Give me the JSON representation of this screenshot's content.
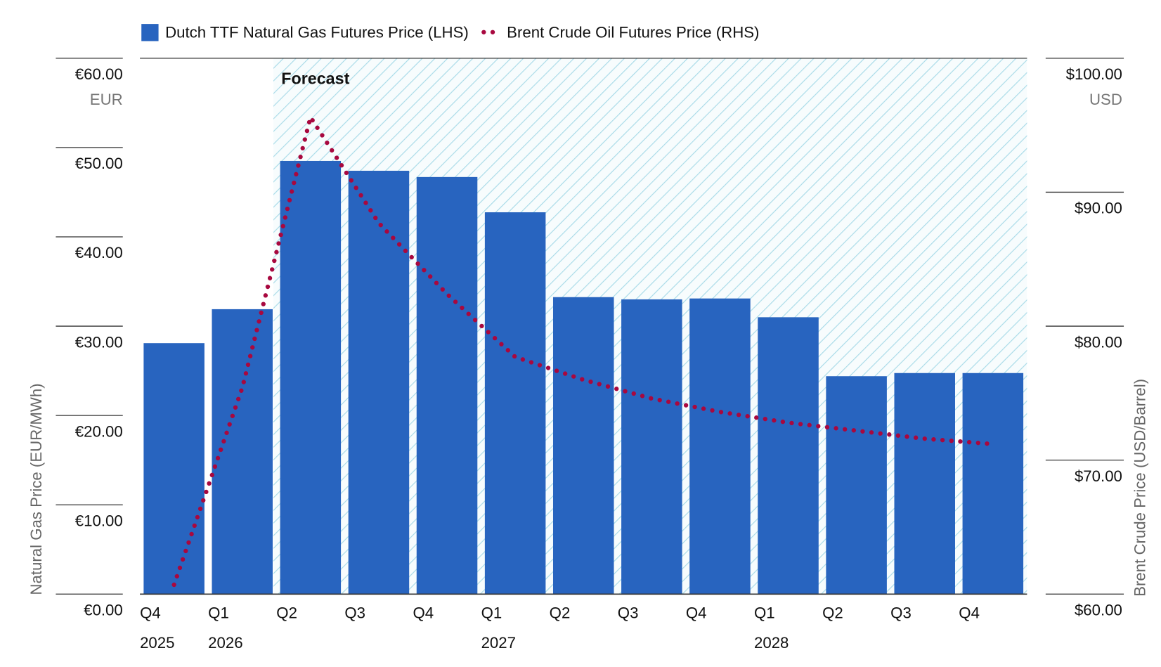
{
  "chart_data": {
    "type": "bar-line",
    "categories": [
      "Q4",
      "Q1",
      "Q2",
      "Q3",
      "Q4",
      "Q1",
      "Q2",
      "Q3",
      "Q4",
      "Q1",
      "Q2",
      "Q3",
      "Q4"
    ],
    "years": [
      "2025",
      "2026",
      null,
      null,
      null,
      "2027",
      null,
      null,
      null,
      "2028",
      null,
      null,
      null
    ],
    "annotation": "Forecast",
    "series": [
      {
        "name": "Dutch TTF Natural Gas Futures Price (LHS)",
        "color": "#2864bf",
        "type": "bar",
        "values": [
          28.1,
          31.9,
          48.5,
          47.4,
          46.7,
          42.75,
          33.25,
          33.0,
          33.1,
          31.0,
          24.4,
          24.75,
          24.75
        ]
      },
      {
        "name": "Brent Crude Oil Futures Price (RHS)",
        "color": "#a8083f",
        "type": "line",
        "axis": "y2",
        "values": [
          60.7,
          75.4,
          95.6,
          87.7,
          82.4,
          77.7,
          76.0,
          74.6,
          73.6,
          72.8,
          72.2,
          71.6,
          71.2
        ]
      }
    ],
    "y_label": "Natural Gas Price (EUR/MWh)",
    "y_unit": "EUR",
    "ylim": [
      0,
      60
    ],
    "yticks": [
      {
        "value": 0,
        "label": "€0.00"
      },
      {
        "value": 10,
        "label": "€10.00"
      },
      {
        "value": 20,
        "label": "€20.00"
      },
      {
        "value": 30,
        "label": "€30.00"
      },
      {
        "value": 40,
        "label": "€40.00"
      },
      {
        "value": 50,
        "label": "€50.00"
      },
      {
        "value": 60,
        "label": "€60.00"
      }
    ],
    "y2_label": "Brent Crude Price (USD/Barrel)",
    "y2_unit": "USD",
    "y2lim": [
      60,
      100
    ],
    "y2ticks": [
      {
        "value": 60,
        "label": "$60.00"
      },
      {
        "value": 70,
        "label": "$70.00"
      },
      {
        "value": 80,
        "label": "$80.00"
      },
      {
        "value": 90,
        "label": "$90.00"
      },
      {
        "value": 100,
        "label": "$100.00"
      }
    ]
  }
}
